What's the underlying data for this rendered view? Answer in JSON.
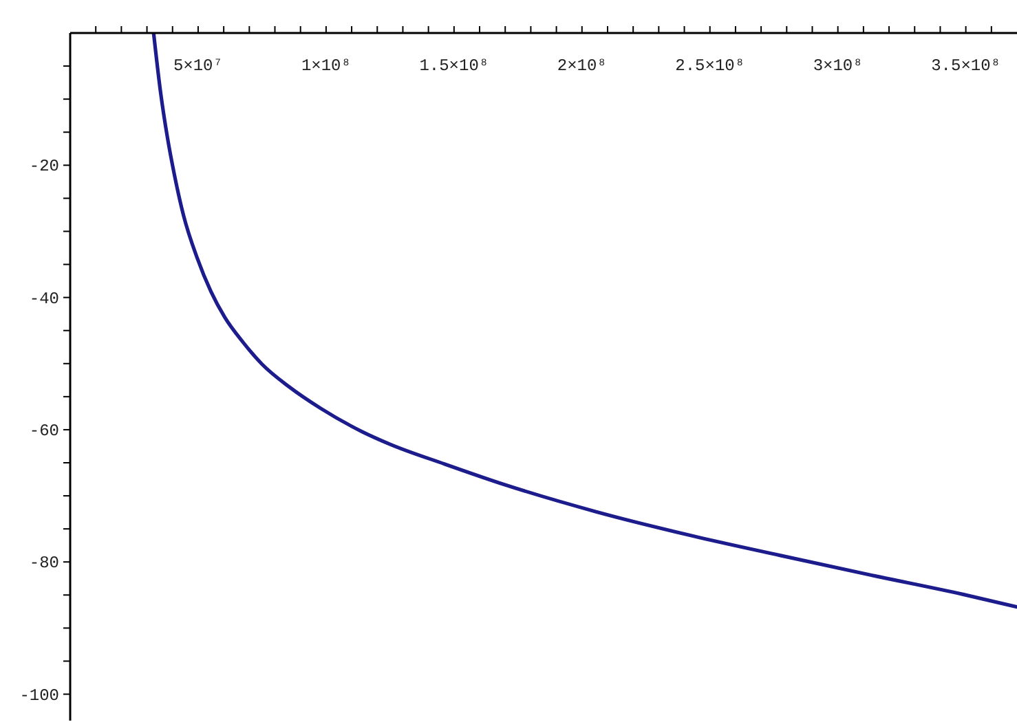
{
  "chart_data": {
    "type": "line",
    "x": [
      32600000,
      35300000,
      38000000,
      40700000,
      44300000,
      49600000,
      55000000,
      60400000,
      67600000,
      75000000,
      85500000,
      98000000,
      114100000,
      125000000,
      146400000,
      169700000,
      205500000,
      241400000,
      277300000,
      313100000,
      348900000,
      370000000
    ],
    "series": [
      {
        "color": "#1c1c8c",
        "values": [
          0,
          -8.9,
          -15.8,
          -21.4,
          -27.6,
          -34,
          -39.1,
          -43,
          -46.8,
          -50.1,
          -53.5,
          -56.8,
          -60.3,
          -62.2,
          -65.2,
          -68.3,
          -72.4,
          -75.9,
          -79,
          -82,
          -84.9,
          -86.8
        ]
      }
    ],
    "xlim": [
      0,
      370000000
    ],
    "xticks": [
      {
        "value": 10000000,
        "label": null
      },
      {
        "value": 20000000,
        "label": null
      },
      {
        "value": 30000000,
        "label": null
      },
      {
        "value": 40000000,
        "label": null
      },
      {
        "value": 50000000,
        "label": "5×10⁷"
      },
      {
        "value": 60000000,
        "label": null
      },
      {
        "value": 70000000,
        "label": null
      },
      {
        "value": 80000000,
        "label": null
      },
      {
        "value": 90000000,
        "label": null
      },
      {
        "value": 100000000,
        "label": "1×10⁸"
      },
      {
        "value": 110000000,
        "label": null
      },
      {
        "value": 120000000,
        "label": null
      },
      {
        "value": 130000000,
        "label": null
      },
      {
        "value": 140000000,
        "label": null
      },
      {
        "value": 150000000,
        "label": "1.5×10⁸"
      },
      {
        "value": 160000000,
        "label": null
      },
      {
        "value": 170000000,
        "label": null
      },
      {
        "value": 180000000,
        "label": null
      },
      {
        "value": 190000000,
        "label": null
      },
      {
        "value": 200000000,
        "label": "2×10⁸"
      },
      {
        "value": 210000000,
        "label": null
      },
      {
        "value": 220000000,
        "label": null
      },
      {
        "value": 230000000,
        "label": null
      },
      {
        "value": 240000000,
        "label": null
      },
      {
        "value": 250000000,
        "label": "2.5×10⁸"
      },
      {
        "value": 260000000,
        "label": null
      },
      {
        "value": 270000000,
        "label": null
      },
      {
        "value": 280000000,
        "label": null
      },
      {
        "value": 290000000,
        "label": null
      },
      {
        "value": 300000000,
        "label": "3×10⁸"
      },
      {
        "value": 310000000,
        "label": null
      },
      {
        "value": 320000000,
        "label": null
      },
      {
        "value": 330000000,
        "label": null
      },
      {
        "value": 340000000,
        "label": null
      },
      {
        "value": 350000000,
        "label": "3.5×10⁸"
      },
      {
        "value": 360000000,
        "label": null
      }
    ],
    "ylim": [
      -104,
      0
    ],
    "yticks": [
      {
        "value": -5,
        "label": null
      },
      {
        "value": -10,
        "label": null
      },
      {
        "value": -15,
        "label": null
      },
      -20,
      {
        "value": -25,
        "label": null
      },
      {
        "value": -30,
        "label": null
      },
      {
        "value": -35,
        "label": null
      },
      -40,
      {
        "value": -45,
        "label": null
      },
      {
        "value": -50,
        "label": null
      },
      {
        "value": -55,
        "label": null
      },
      -60,
      {
        "value": -65,
        "label": null
      },
      {
        "value": -70,
        "label": null
      },
      {
        "value": -75,
        "label": null
      },
      -80,
      {
        "value": -85,
        "label": null
      },
      {
        "value": -90,
        "label": null
      },
      {
        "value": -95,
        "label": null
      },
      -100
    ],
    "grid": false,
    "legend": false,
    "marker": "none",
    "line_style": "solid"
  }
}
